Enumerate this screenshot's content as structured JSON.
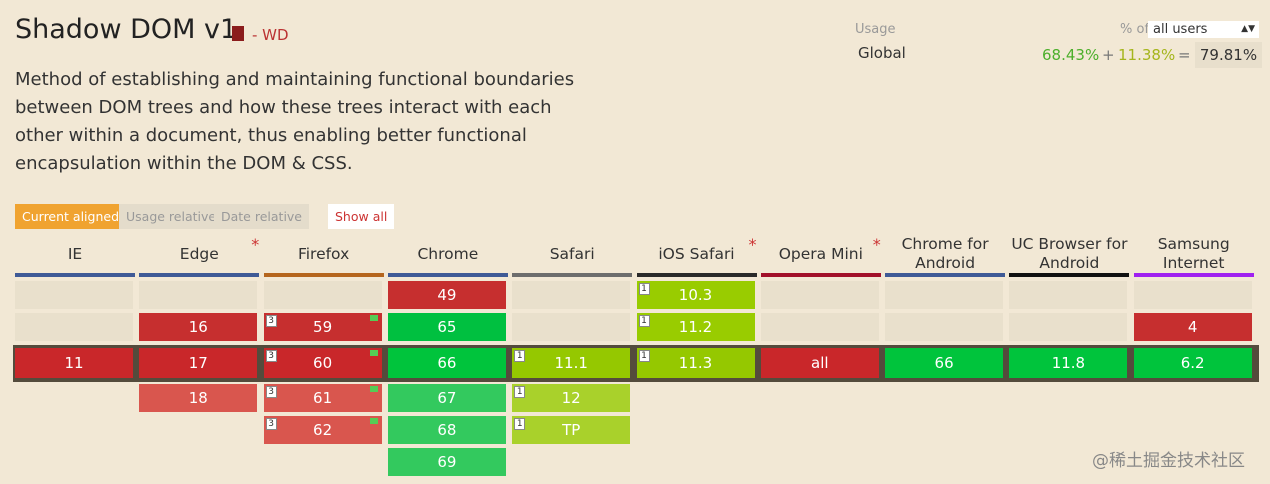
{
  "header": {
    "title": "Shadow DOM v1",
    "status": "- WD",
    "description": "Method of establishing and maintaining functional boundaries between DOM trees and how these trees interact with each other within a document, thus enabling better functional encapsulation within the DOM & CSS."
  },
  "usage": {
    "label": "Usage",
    "scope": "Global",
    "percent_of": "% of",
    "users_select": "all users",
    "full": "68.43%",
    "plus": "+",
    "partial": "11.38%",
    "equals": "=",
    "total": "79.81%"
  },
  "tabs": [
    "Current aligned",
    "Usage relative",
    "Date relative"
  ],
  "show_all": "Show all",
  "browsers": [
    {
      "name": "IE",
      "color": "#3f5a96",
      "past": [],
      "current": {
        "version": "11",
        "support": "n"
      },
      "future": []
    },
    {
      "name": "Edge",
      "star": "*",
      "color": "#3f5a96",
      "past": [
        {
          "version": "16",
          "support": "n"
        }
      ],
      "current": {
        "version": "17",
        "support": "n"
      },
      "future": [
        {
          "version": "18",
          "support": "n"
        }
      ]
    },
    {
      "name": "Firefox",
      "color": "#b5651d",
      "past": [
        {
          "version": "59",
          "support": "n",
          "note": "3",
          "flag": true
        }
      ],
      "current": {
        "version": "60",
        "support": "n",
        "note": "3",
        "flag": true
      },
      "future": [
        {
          "version": "61",
          "support": "n",
          "note": "3",
          "flag": true
        },
        {
          "version": "62",
          "support": "n",
          "note": "3",
          "flag": true
        }
      ]
    },
    {
      "name": "Chrome",
      "color": "#3f5a96",
      "past": [
        {
          "version": "49",
          "support": "n"
        },
        {
          "version": "65",
          "support": "y"
        }
      ],
      "current": {
        "version": "66",
        "support": "y"
      },
      "future": [
        {
          "version": "67",
          "support": "y"
        },
        {
          "version": "68",
          "support": "y"
        },
        {
          "version": "69",
          "support": "y"
        }
      ]
    },
    {
      "name": "Safari",
      "color": "#6d6d6d",
      "past": [],
      "current": {
        "version": "11.1",
        "support": "a",
        "note": "1"
      },
      "future": [
        {
          "version": "12",
          "support": "a",
          "note": "1"
        },
        {
          "version": "TP",
          "support": "a",
          "note": "1"
        }
      ]
    },
    {
      "name": "iOS Safari",
      "star": "*",
      "color": "#2a2a2a",
      "past": [
        {
          "version": "10.3",
          "support": "a",
          "note": "1"
        },
        {
          "version": "11.2",
          "support": "a",
          "note": "1"
        }
      ],
      "current": {
        "version": "11.3",
        "support": "a",
        "note": "1"
      },
      "future": []
    },
    {
      "name": "Opera Mini",
      "star": "*",
      "color": "#a2102a",
      "past": [],
      "current": {
        "version": "all",
        "support": "n"
      },
      "future": []
    },
    {
      "name": "Chrome for Android",
      "color": "#3f5a96",
      "past": [],
      "current": {
        "version": "66",
        "support": "y"
      },
      "future": []
    },
    {
      "name": "UC Browser for Android",
      "color": "#111111",
      "past": [],
      "current": {
        "version": "11.8",
        "support": "y"
      },
      "future": []
    },
    {
      "name": "Samsung Internet",
      "color": "#a020f0",
      "past": [
        {
          "version": "4",
          "support": "n"
        }
      ],
      "current": {
        "version": "6.2",
        "support": "y"
      },
      "future": []
    }
  ],
  "watermark": "@稀土掘金技术社区"
}
